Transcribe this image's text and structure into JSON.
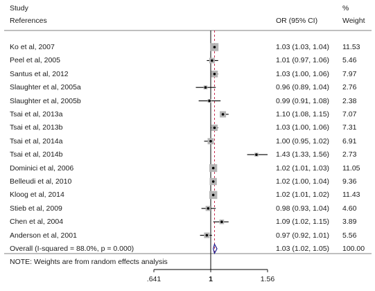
{
  "header": {
    "study_line1": "Study",
    "study_line2": "References",
    "or_label": "OR (95% CI)",
    "weight_line1": "%",
    "weight_line2": "Weight"
  },
  "note": "NOTE: Weights are from random effects analysis",
  "colors": {
    "text": "#1a1a1a",
    "box": "#b5b5b5",
    "line": "#000000",
    "null_line": "#000000",
    "overall_line": "#c0143c",
    "diamond": "#1a1a8c"
  },
  "chart_data": {
    "type": "forest",
    "x_scale": "log",
    "xlim": [
      0.641,
      1.56
    ],
    "x_ticks": [
      {
        "value": 0.641,
        "label": ".641"
      },
      {
        "value": 1,
        "label": "1"
      },
      {
        "value": 1.56,
        "label": "1.56"
      }
    ],
    "null_value": 1,
    "studies": [
      {
        "name": "Ko et al, 2007",
        "or": 1.03,
        "lo": 1.03,
        "hi": 1.04,
        "or_text": "1.03 (1.03, 1.04)",
        "weight": 11.53,
        "weight_text": "11.53"
      },
      {
        "name": "Peel et al, 2005",
        "or": 1.01,
        "lo": 0.97,
        "hi": 1.06,
        "or_text": "1.01 (0.97, 1.06)",
        "weight": 5.46,
        "weight_text": "5.46"
      },
      {
        "name": "Santus et al, 2012",
        "or": 1.03,
        "lo": 1.0,
        "hi": 1.06,
        "or_text": "1.03 (1.00, 1.06)",
        "weight": 7.97,
        "weight_text": "7.97"
      },
      {
        "name": "Slaughter et al, 2005a",
        "or": 0.96,
        "lo": 0.89,
        "hi": 1.04,
        "or_text": "0.96 (0.89, 1.04)",
        "weight": 2.76,
        "weight_text": "2.76"
      },
      {
        "name": "Slaughter et al, 2005b",
        "or": 0.99,
        "lo": 0.91,
        "hi": 1.08,
        "or_text": "0.99 (0.91, 1.08)",
        "weight": 2.38,
        "weight_text": "2.38"
      },
      {
        "name": "Tsai et al, 2013a",
        "or": 1.1,
        "lo": 1.08,
        "hi": 1.15,
        "or_text": "1.10 (1.08, 1.15)",
        "weight": 7.07,
        "weight_text": "7.07"
      },
      {
        "name": "Tsai et al, 2013b",
        "or": 1.03,
        "lo": 1.0,
        "hi": 1.06,
        "or_text": "1.03 (1.00, 1.06)",
        "weight": 7.31,
        "weight_text": "7.31"
      },
      {
        "name": "Tsai et al, 2014a",
        "or": 1.0,
        "lo": 0.95,
        "hi": 1.02,
        "or_text": "1.00 (0.95, 1.02)",
        "weight": 6.91,
        "weight_text": "6.91"
      },
      {
        "name": "Tsai et al, 2014b",
        "or": 1.43,
        "lo": 1.33,
        "hi": 1.56,
        "or_text": "1.43 (1.33, 1.56)",
        "weight": 2.73,
        "weight_text": "2.73"
      },
      {
        "name": "Dominici et al, 2006",
        "or": 1.02,
        "lo": 1.01,
        "hi": 1.03,
        "or_text": "1.02 (1.01, 1.03)",
        "weight": 11.05,
        "weight_text": "11.05"
      },
      {
        "name": "Belleudi et al, 2010",
        "or": 1.02,
        "lo": 1.0,
        "hi": 1.04,
        "or_text": "1.02 (1.00, 1.04)",
        "weight": 9.36,
        "weight_text": "9.36"
      },
      {
        "name": "Kloog et al, 2014",
        "or": 1.02,
        "lo": 1.01,
        "hi": 1.02,
        "or_text": "1.02 (1.01, 1.02)",
        "weight": 11.43,
        "weight_text": "11.43"
      },
      {
        "name": "Stieb et al, 2009",
        "or": 0.98,
        "lo": 0.93,
        "hi": 1.04,
        "or_text": "0.98 (0.93, 1.04)",
        "weight": 4.6,
        "weight_text": "4.60"
      },
      {
        "name": "Chen et al, 2004",
        "or": 1.09,
        "lo": 1.02,
        "hi": 1.15,
        "or_text": "1.09 (1.02, 1.15)",
        "weight": 3.89,
        "weight_text": "3.89"
      },
      {
        "name": "Anderson et al, 2001",
        "or": 0.97,
        "lo": 0.92,
        "hi": 1.01,
        "or_text": "0.97 (0.92, 1.01)",
        "weight": 5.56,
        "weight_text": "5.56"
      }
    ],
    "overall": {
      "name": "Overall  (I-squared = 88.0%, p = 0.000)",
      "or": 1.03,
      "lo": 1.02,
      "hi": 1.05,
      "or_text": "1.03 (1.02, 1.05)",
      "weight_text": "100.00"
    }
  }
}
